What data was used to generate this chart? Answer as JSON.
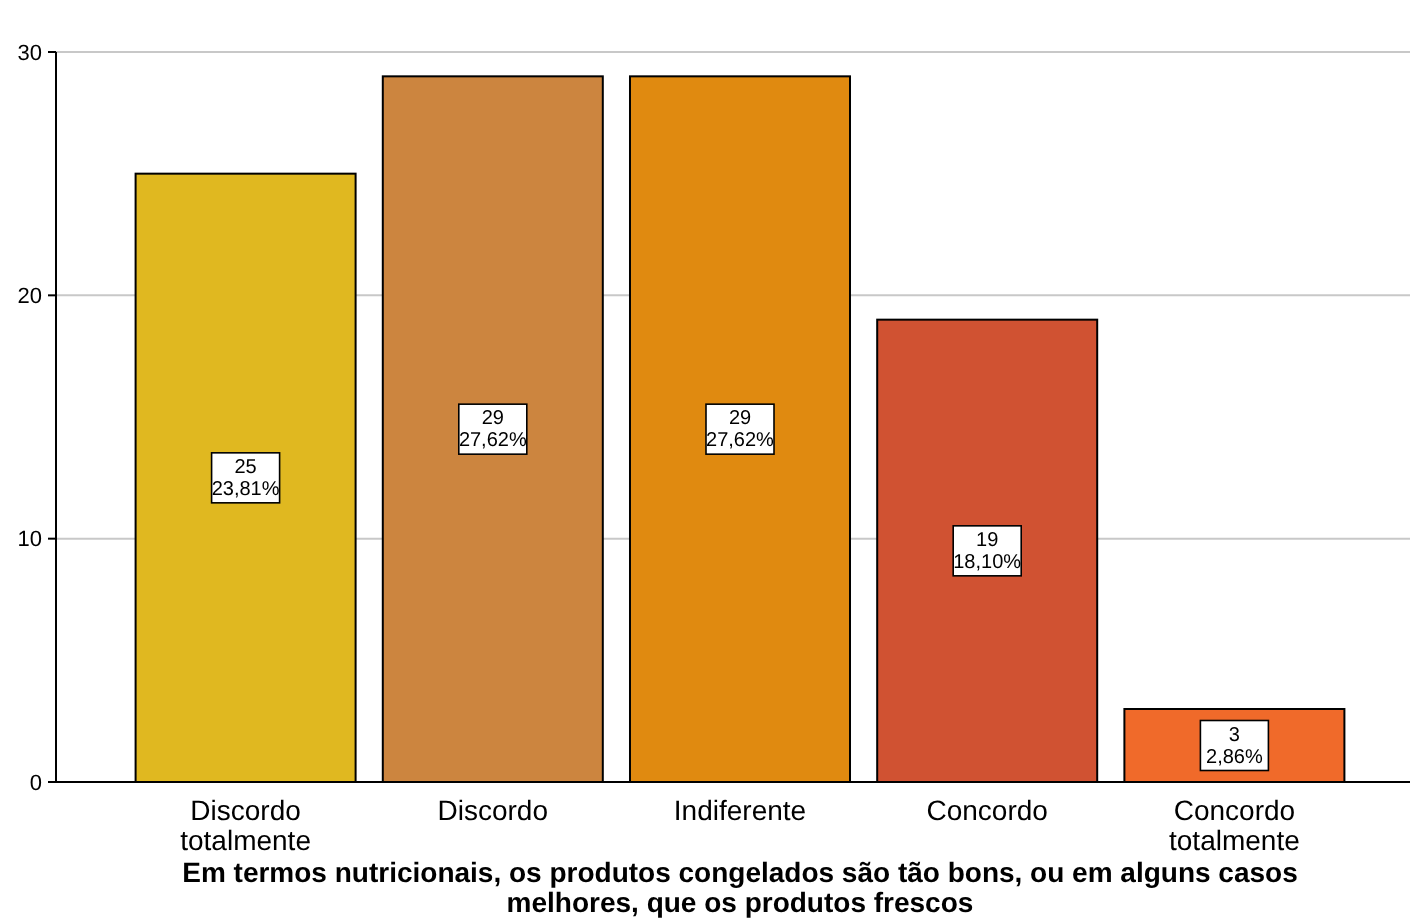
{
  "chart_data": {
    "type": "bar",
    "xlabel": "Em termos nutricionais, os produtos congelados são tão bons, ou em alguns casos melhores, que os produtos frescos",
    "categories": [
      "Discordo totalmente",
      "Discordo",
      "Indiferente",
      "Concordo",
      "Concordo totalmente"
    ],
    "values": [
      25,
      29,
      29,
      19,
      3
    ],
    "colors": [
      "#e0b820",
      "#cc853f",
      "#e08a10",
      "#d05232",
      "#f06a2a"
    ],
    "value_labels": [
      "25\n23,81%",
      "29\n27,62%",
      "29\n27,62%",
      "19\n18,10%",
      "3\n2,86%"
    ],
    "ylim": [
      0,
      30
    ],
    "yticks": [
      0,
      10,
      20,
      30
    ],
    "grid": "y"
  }
}
